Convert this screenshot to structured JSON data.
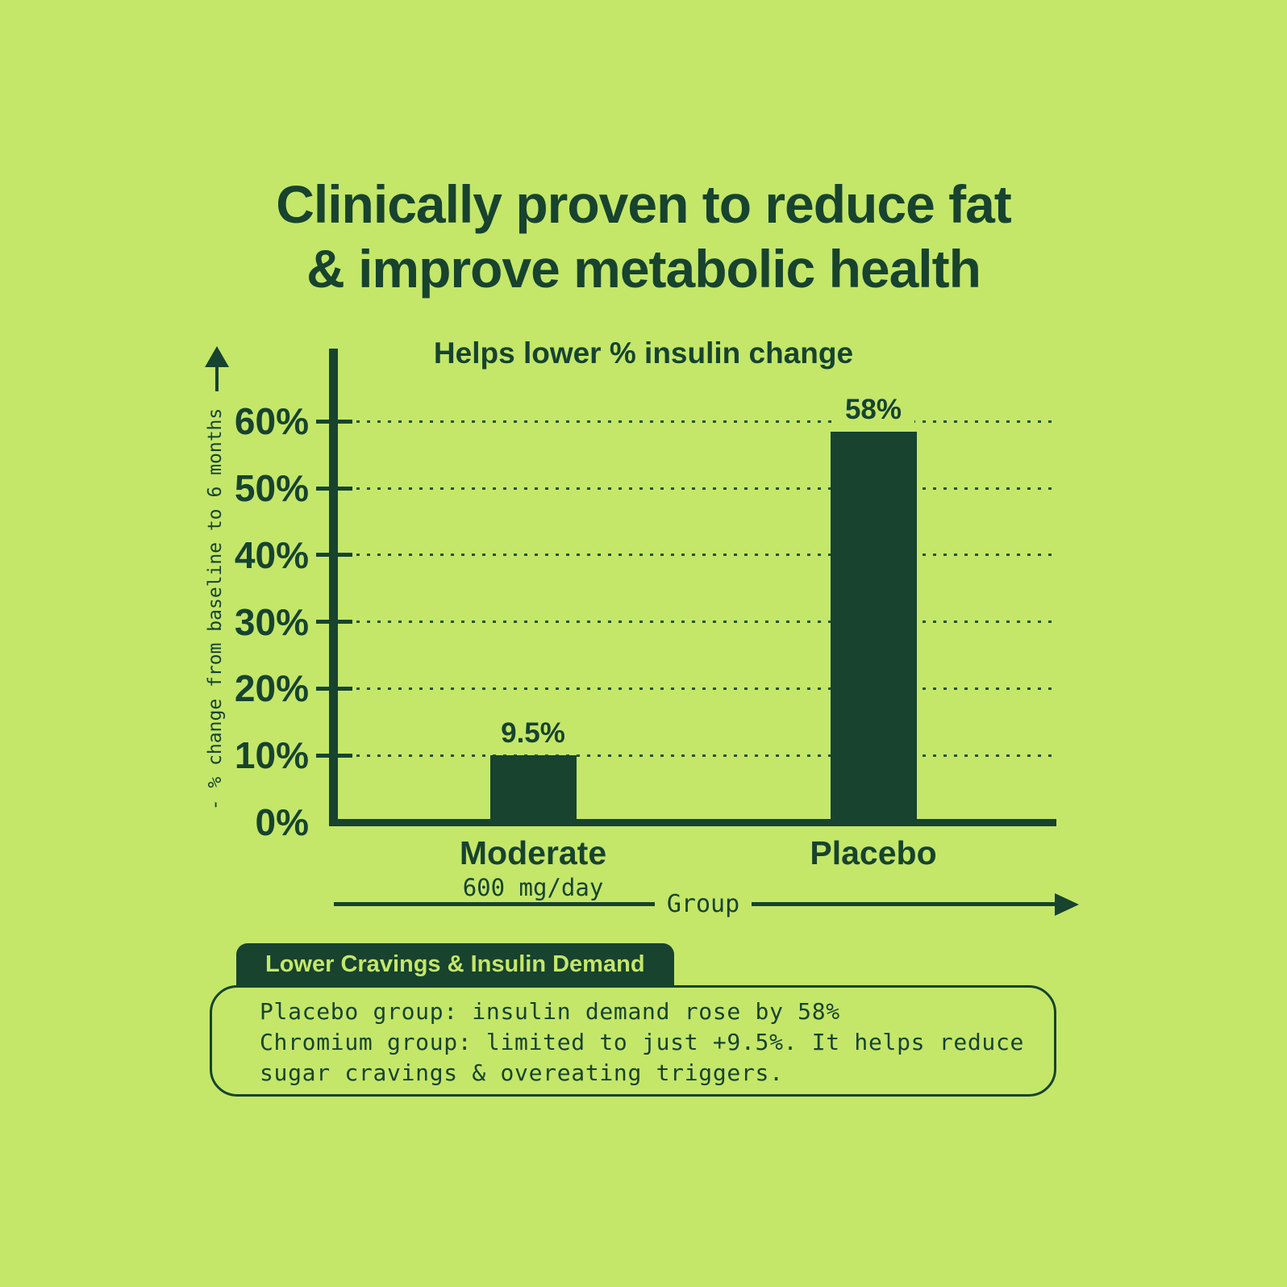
{
  "page": {
    "title_line1": "Clinically proven to reduce fat",
    "title_line2": "& improve metabolic health"
  },
  "chart_data": {
    "type": "bar",
    "title": "Helps lower % insulin change",
    "categories": [
      "Moderate",
      "Placebo"
    ],
    "category_sublabels": [
      "600 mg/day",
      ""
    ],
    "values": [
      9.5,
      58
    ],
    "value_labels": [
      "9.5%",
      "58%"
    ],
    "xlabel": "Group",
    "ylabel": "- % change from baseline to 6 months",
    "ylim": [
      0,
      70
    ],
    "yticks": [
      0,
      10,
      20,
      30,
      40,
      50,
      60
    ],
    "ytick_labels": [
      "0%",
      "10%",
      "20%",
      "30%",
      "40%",
      "50%",
      "60%"
    ],
    "grid": "dotted horizontal gridlines at each 10% from 10% to 60%",
    "legend": "none",
    "bar_color": "#17432f",
    "background_color": "#c4e76a"
  },
  "callout": {
    "badge": "Lower Cravings & Insulin Demand",
    "lines": [
      "Placebo group: insulin demand rose by 58%",
      "Chromium group: limited to just +9.5%. It helps reduce",
      "sugar cravings & overeating triggers."
    ]
  },
  "colors": {
    "background": "#c4e76a",
    "dark_green": "#17432f"
  }
}
